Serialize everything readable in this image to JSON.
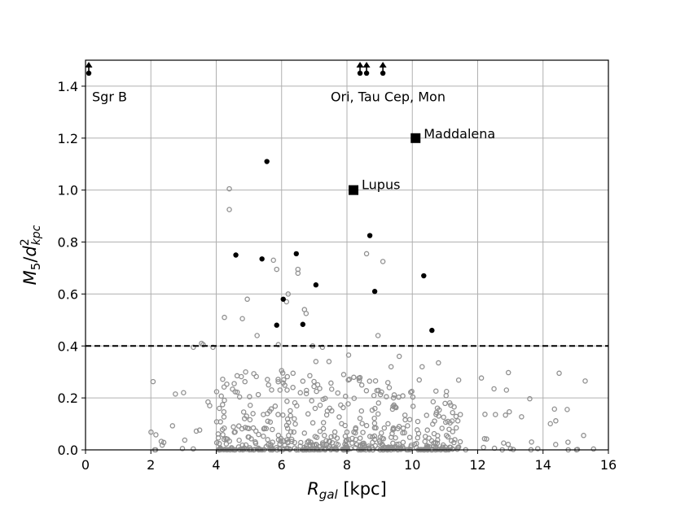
{
  "chart_data": {
    "type": "scatter",
    "title": "",
    "xlabel": {
      "base": "R",
      "sub": "gal",
      "suffix": " [kpc]"
    },
    "ylabel": {
      "base": "M",
      "sub1": "5",
      "sep": "/",
      "base2": "d",
      "sup": "2",
      "sub2": "kpc"
    },
    "xlim": [
      0,
      16
    ],
    "ylim": [
      0,
      1.5
    ],
    "xticks": [
      0,
      2,
      4,
      6,
      8,
      10,
      12,
      14,
      16
    ],
    "yticks": [
      0.0,
      0.2,
      0.4,
      0.6,
      0.8,
      1.0,
      1.2,
      1.4
    ],
    "ytick_labels": [
      "0.0",
      "0.2",
      "0.4",
      "0.6",
      "0.8",
      "1.0",
      "1.2",
      "1.4"
    ],
    "grid": true,
    "threshold_line": {
      "y": 0.4,
      "style": "dashed",
      "color": "#000000"
    },
    "colors": {
      "open": "#909090",
      "filled": "#000000",
      "grid": "#b0b0b0"
    },
    "filled_points": {
      "x": [
        5.55,
        4.6,
        5.4,
        6.45,
        7.05,
        6.05,
        5.85,
        6.65,
        8.7,
        8.85,
        10.35,
        10.6
      ],
      "y": [
        1.11,
        0.75,
        0.735,
        0.755,
        0.635,
        0.58,
        0.48,
        0.483,
        0.825,
        0.61,
        0.67,
        0.46
      ]
    },
    "open_points_highlight": {
      "x": [
        4.4,
        4.4,
        5.75,
        5.85,
        6.2,
        6.15,
        6.5,
        6.5,
        6.7,
        6.75,
        6.95,
        7.25,
        8.6,
        9.1,
        8.95,
        3.55,
        3.6,
        3.3,
        3.9,
        4.25,
        4.8,
        4.95,
        5.25,
        5.9,
        6.0,
        6.35,
        7.05,
        7.45,
        8.05,
        9.6,
        10.3,
        10.8,
        12.5,
        4.55,
        4.9,
        5.6,
        7.9,
        9.35,
        2.75,
        3.0,
        3.8
      ],
      "y": [
        1.005,
        0.925,
        0.73,
        0.695,
        0.6,
        0.57,
        0.695,
        0.68,
        0.54,
        0.525,
        0.4,
        0.395,
        0.755,
        0.725,
        0.44,
        0.41,
        0.405,
        0.395,
        0.395,
        0.51,
        0.505,
        0.58,
        0.44,
        0.405,
        0.305,
        0.295,
        0.34,
        0.34,
        0.365,
        0.36,
        0.32,
        0.335,
        0.235,
        0.255,
        0.3,
        0.25,
        0.29,
        0.32,
        0.215,
        0.22,
        0.17
      ]
    },
    "bulk_cloud": {
      "count": 620,
      "x_range": [
        1.9,
        15.8
      ],
      "y_range": [
        0.0,
        0.3
      ]
    },
    "arrows": {
      "x": [
        0.1,
        8.4,
        8.6,
        9.1
      ],
      "y": 1.45
    },
    "annotations": [
      {
        "text": "Sgr B",
        "x": 0.2,
        "y": 1.36
      },
      {
        "text": "Ori, Tau Cep, Mon",
        "x": 7.5,
        "y": 1.36
      },
      {
        "text": "Maddalena",
        "marker_x": 10.1,
        "marker_y": 1.2
      },
      {
        "text": "Lupus",
        "marker_x": 8.2,
        "marker_y": 1.0
      }
    ]
  }
}
